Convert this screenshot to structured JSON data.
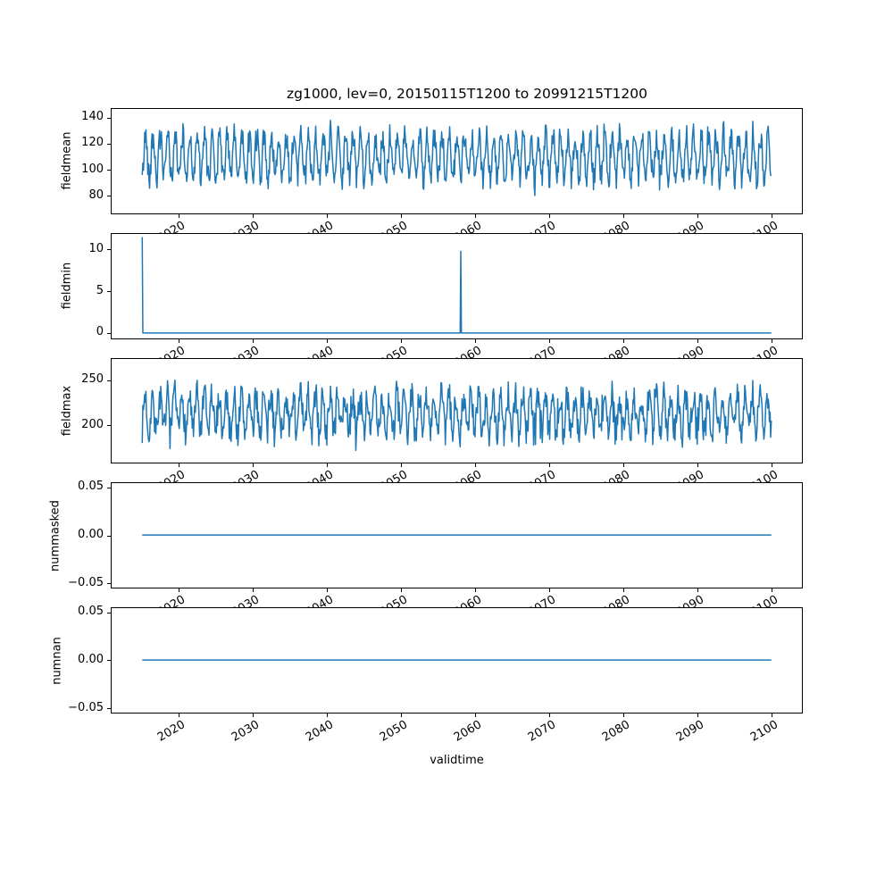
{
  "figure": {
    "title": "zg1000, lev=0, 20150115T1200 to 20991215T1200",
    "xlabel": "validtime",
    "background": "#ffffff",
    "line_color": "#1f77b4",
    "axis_color": "#000000",
    "text_color": "#000000"
  },
  "xticks": [
    {
      "value": 2020,
      "label": "2020"
    },
    {
      "value": 2030,
      "label": "2030"
    },
    {
      "value": 2040,
      "label": "2040"
    },
    {
      "value": 2050,
      "label": "2050"
    },
    {
      "value": 2060,
      "label": "2060"
    },
    {
      "value": 2070,
      "label": "2070"
    },
    {
      "value": 2080,
      "label": "2080"
    },
    {
      "value": 2090,
      "label": "2090"
    },
    {
      "value": 2100,
      "label": "2100"
    }
  ],
  "chart_data": [
    {
      "type": "line",
      "ylabel": "fieldmean",
      "x": {
        "start": 2015.042,
        "end": 2099.958,
        "n": 1020
      },
      "xlim": [
        2010.79,
        2104.21
      ],
      "ylim": [
        65.9,
        147.3
      ],
      "yticks": [
        {
          "value": 80,
          "label": "80"
        },
        {
          "value": 100,
          "label": "100"
        },
        {
          "value": 120,
          "label": "120"
        },
        {
          "value": 140,
          "label": "140"
        }
      ],
      "series": {
        "kind": "seasonal",
        "base": 110,
        "cos_amplitude": 16.5,
        "phase": 0.0,
        "noise": 9.5,
        "clamp": [
          73,
          142
        ],
        "seed": 42
      },
      "observed_range": [
        73,
        142
      ]
    },
    {
      "type": "line",
      "ylabel": "fieldmin",
      "x": {
        "start": 2015.042,
        "end": 2099.958,
        "n": 1020
      },
      "xlim": [
        2010.79,
        2104.21
      ],
      "ylim": [
        -0.74,
        11.98
      ],
      "yticks": [
        {
          "value": 0,
          "label": "0"
        },
        {
          "value": 5,
          "label": "5"
        },
        {
          "value": 10,
          "label": "10"
        }
      ],
      "series": {
        "kind": "constant_with_spikes",
        "value": 0,
        "spikes": [
          {
            "x": 2015.042,
            "value": 11.5
          },
          {
            "x": 2058.04,
            "value": 9.8
          }
        ]
      },
      "observed_range": [
        0,
        11.5
      ]
    },
    {
      "type": "line",
      "ylabel": "fieldmax",
      "x": {
        "start": 2015.042,
        "end": 2099.958,
        "n": 1020
      },
      "xlim": [
        2010.79,
        2104.21
      ],
      "ylim": [
        156.9,
        274.9
      ],
      "yticks": [
        {
          "value": 200,
          "label": "200"
        },
        {
          "value": 250,
          "label": "250"
        }
      ],
      "series": {
        "kind": "seasonal",
        "base": 213,
        "cos_amplitude": 21,
        "phase": 0.07,
        "noise": 17,
        "clamp": [
          163,
          270
        ],
        "seed": 7
      },
      "observed_range": [
        163,
        270
      ]
    },
    {
      "type": "line",
      "ylabel": "nummasked",
      "x": {
        "start": 2015.042,
        "end": 2099.958,
        "n": 1020
      },
      "xlim": [
        2010.79,
        2104.21
      ],
      "ylim": [
        -0.0555,
        0.0549
      ],
      "yticks": [
        {
          "value": -0.05,
          "label": "−0.05"
        },
        {
          "value": 0,
          "label": "0.00"
        },
        {
          "value": 0.05,
          "label": "0.05"
        }
      ],
      "series": {
        "kind": "constant",
        "value": 0
      },
      "observed_range": [
        0,
        0
      ]
    },
    {
      "type": "line",
      "ylabel": "numnan",
      "x": {
        "start": 2015.042,
        "end": 2099.958,
        "n": 1020
      },
      "xlim": [
        2010.79,
        2104.21
      ],
      "ylim": [
        -0.0555,
        0.0549
      ],
      "yticks": [
        {
          "value": -0.05,
          "label": "−0.05"
        },
        {
          "value": 0,
          "label": "0.00"
        },
        {
          "value": 0.05,
          "label": "0.05"
        }
      ],
      "series": {
        "kind": "constant",
        "value": 0
      },
      "observed_range": [
        0,
        0
      ]
    }
  ]
}
